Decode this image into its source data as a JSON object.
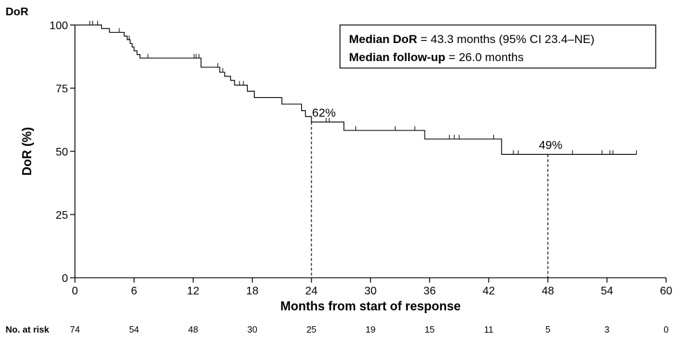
{
  "chart_data": {
    "type": "line",
    "corner_label": "DoR",
    "ylabel": "DoR (%)",
    "xlabel": "Months from start of response",
    "xlim": [
      0,
      60
    ],
    "ylim": [
      0,
      100
    ],
    "xticks": [
      0,
      6,
      12,
      18,
      24,
      30,
      36,
      42,
      48,
      54,
      60
    ],
    "yticks": [
      0,
      25,
      50,
      75,
      100
    ],
    "grid": false,
    "km_steps": [
      [
        0,
        100
      ],
      [
        2.7,
        98.6
      ],
      [
        3.5,
        97.1
      ],
      [
        5.0,
        95.6
      ],
      [
        5.3,
        94.2
      ],
      [
        5.6,
        92.7
      ],
      [
        5.8,
        91.3
      ],
      [
        6.0,
        89.8
      ],
      [
        6.3,
        88.3
      ],
      [
        6.6,
        86.9
      ],
      [
        12.8,
        83.3
      ],
      [
        14.7,
        81.3
      ],
      [
        15.2,
        79.7
      ],
      [
        15.8,
        78.1
      ],
      [
        16.2,
        76.2
      ],
      [
        17.5,
        73.8
      ],
      [
        18.2,
        71.3
      ],
      [
        21.0,
        68.7
      ],
      [
        23.0,
        66.1
      ],
      [
        23.4,
        63.8
      ],
      [
        24.0,
        61.6
      ],
      [
        27.3,
        58.3
      ],
      [
        35.5,
        54.9
      ],
      [
        43.3,
        48.8
      ],
      [
        57.0,
        48.8
      ]
    ],
    "censor_times": [
      1.5,
      1.8,
      2.3,
      4.5,
      5.5,
      7.4,
      12.1,
      12.3,
      12.6,
      14.5,
      15.0,
      16.7,
      17.1,
      25.5,
      25.8,
      28.5,
      32.5,
      34.5,
      38.0,
      38.5,
      39.0,
      42.5,
      44.5,
      45.0,
      50.5,
      53.5,
      54.3,
      54.6,
      57.0
    ],
    "annotations": [
      {
        "x": 24,
        "y": 61.6,
        "label": "62%"
      },
      {
        "x": 48,
        "y": 48.8,
        "label": "49%"
      }
    ],
    "legend": {
      "position": "top-right",
      "lines": [
        {
          "bold": "Median DoR",
          "rest": " = 43.3 months (95% CI 23.4–NE)"
        },
        {
          "bold": "Median follow-up",
          "rest": " = 26.0 months"
        }
      ]
    },
    "at_risk": {
      "label": "No. at risk",
      "times": [
        0,
        6,
        12,
        18,
        24,
        30,
        36,
        42,
        48,
        54,
        60
      ],
      "counts": [
        "74",
        "54",
        "48",
        "30",
        "25",
        "19",
        "15",
        "11",
        "5",
        "3",
        "0"
      ]
    }
  }
}
